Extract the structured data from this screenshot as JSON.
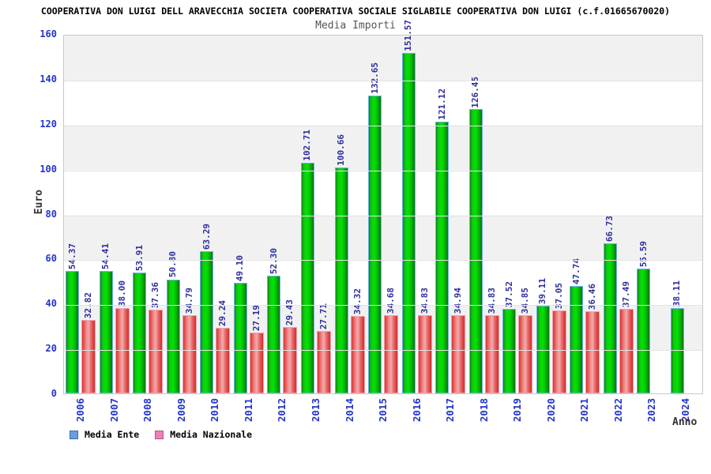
{
  "header": {
    "title": "COOPERATIVA DON LUIGI DELL ARAVECCHIA SOCIETA COOPERATIVA SOCIALE SIGLABILE COOPERATIVA DON LUIGI (c.f.01665670020)",
    "subtitle": "Media Importi"
  },
  "chart_data": {
    "type": "bar",
    "title": "Media Importi",
    "xlabel": "Anno",
    "ylabel": "Euro",
    "ylim": [
      0,
      160
    ],
    "ytick_step": 20,
    "grid": "horizontal-bands",
    "legend_position": "bottom-left",
    "categories": [
      "2006",
      "2007",
      "2008",
      "2009",
      "2010",
      "2011",
      "2012",
      "2013",
      "2014",
      "2015",
      "2016",
      "2017",
      "2018",
      "2019",
      "2020",
      "2021",
      "2022",
      "2023",
      "2024"
    ],
    "series": [
      {
        "name": "Media Ente",
        "legend_swatch": "#6a9ede",
        "bar_color": "#00cc00",
        "values": [
          54.37,
          54.41,
          53.91,
          50.8,
          63.29,
          49.1,
          52.3,
          102.71,
          100.66,
          132.65,
          151.57,
          121.12,
          126.45,
          37.52,
          39.11,
          47.74,
          66.73,
          55.59,
          38.11
        ]
      },
      {
        "name": "Media Nazionale",
        "legend_swatch": "#ec82b4",
        "bar_color": "#e04040",
        "values": [
          32.82,
          38.0,
          37.36,
          34.79,
          29.24,
          27.19,
          29.43,
          27.71,
          34.32,
          34.68,
          34.83,
          34.94,
          34.83,
          34.85,
          37.05,
          36.46,
          37.49,
          null,
          null
        ]
      }
    ]
  },
  "axes": {
    "y_ticks": [
      0,
      20,
      40,
      60,
      80,
      100,
      120,
      140,
      160
    ],
    "y_label": "Euro",
    "x_label": "Anno"
  },
  "legend": {
    "items": [
      {
        "label": "Media Ente",
        "color": "#6a9ede"
      },
      {
        "label": "Media Nazionale",
        "color": "#ec82b4"
      }
    ]
  },
  "colors": {
    "axis_tick_text": "#2233cc",
    "value_label_text": "#2d2da0",
    "year_label_text": "#2233cc",
    "band_gray": "#f1f1f1",
    "band_white": "#ffffff",
    "plot_border": "#c8c8c8",
    "green_bar_border": "#6cb2ee",
    "red_bar_border": "#f2a0ac",
    "subtitle_text": "#555555",
    "axis_title_text": "#333333",
    "title_text": "#000000"
  }
}
